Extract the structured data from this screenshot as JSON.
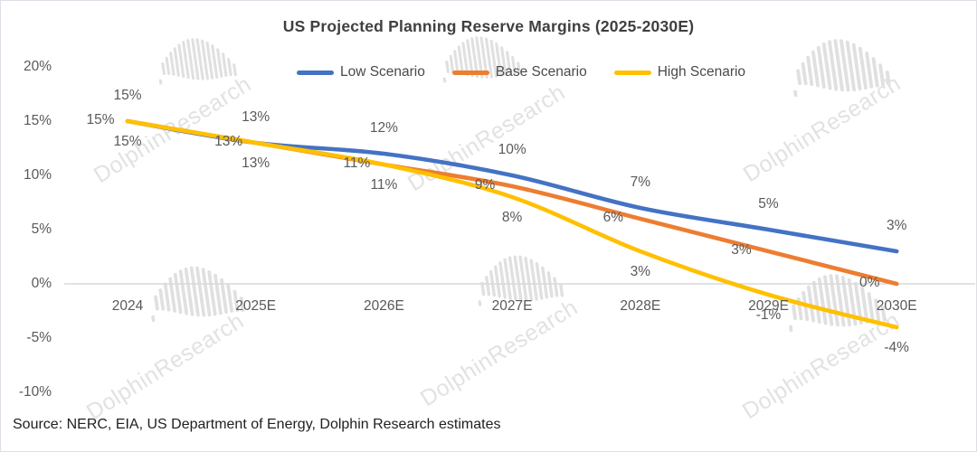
{
  "chart_data": {
    "type": "line",
    "title": "US Projected Planning Reserve Margins (2025-2030E)",
    "categories": [
      "2024",
      "2025E",
      "2026E",
      "2027E",
      "2028E",
      "2029E",
      "2030E"
    ],
    "series": [
      {
        "name": "Low Scenario",
        "color": "#4472C4",
        "values": [
          15,
          13,
          12,
          10,
          7,
          5,
          3
        ],
        "data_label_position": "above"
      },
      {
        "name": "Base Scenario",
        "color": "#ED7D31",
        "values": [
          15,
          13,
          11,
          9,
          6,
          3,
          0
        ],
        "data_label_position": "left"
      },
      {
        "name": "High Scenario",
        "color": "#FFC000",
        "values": [
          15,
          13,
          11,
          8,
          3,
          -1,
          -4
        ],
        "data_label_position": "below"
      }
    ],
    "y_axis": {
      "ticks": [
        20,
        15,
        10,
        5,
        0,
        -5,
        -10
      ],
      "tick_labels": [
        "20%",
        "15%",
        "10%",
        "5%",
        "0%",
        "-5%",
        "-10%"
      ],
      "range": [
        -10,
        20
      ]
    },
    "data_labels": true,
    "data_label_format": "{value}%",
    "line_style": "smooth",
    "gridlines": "zero-line-only",
    "legend_position": "top-center"
  },
  "source_note": "Source: NERC, EIA, US Department of Energy, Dolphin Research estimates",
  "watermark": {
    "text": "DolphinResearch",
    "icon": "dolphin-soundwave-logo"
  },
  "palette": {
    "background": "#ffffff",
    "zero_grid_line": "#d9d9d9",
    "axis_text": "#595959",
    "title_text": "#3f3f3f",
    "data_label_text": "#595959",
    "source_text": "#1f1f1f",
    "watermark_gray": "#e2e2e2"
  }
}
